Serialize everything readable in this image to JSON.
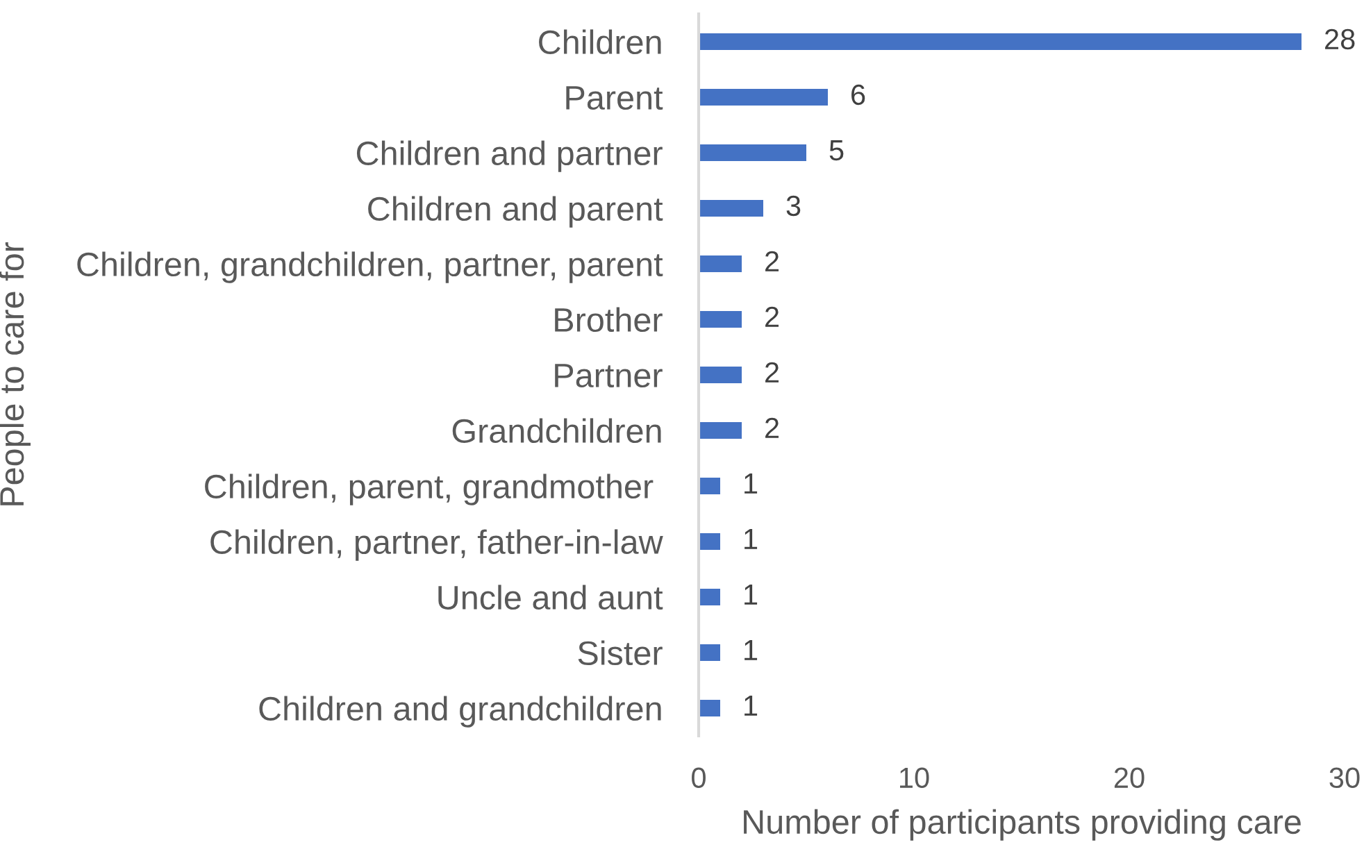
{
  "chart_data": {
    "type": "bar",
    "orientation": "horizontal",
    "xlabel": "Number of participants providing care",
    "ylabel": "People to care for",
    "categories": [
      "Children",
      "Parent",
      "Children and partner",
      "Children and parent",
      "Children, grandchildren, partner, parent",
      "Brother",
      "Partner",
      "Grandchildren",
      "Children, parent, grandmother ",
      "Children, partner, father-in-law",
      "Uncle and aunt",
      "Sister",
      "Children and grandchildren"
    ],
    "values": [
      28,
      6,
      5,
      3,
      2,
      2,
      2,
      2,
      1,
      1,
      1,
      1,
      1
    ],
    "color": "#4472c4",
    "data_labels": true,
    "xlim": [
      0,
      30
    ],
    "xticks": [
      0,
      10,
      20,
      30
    ],
    "grid": false,
    "legend": false
  }
}
